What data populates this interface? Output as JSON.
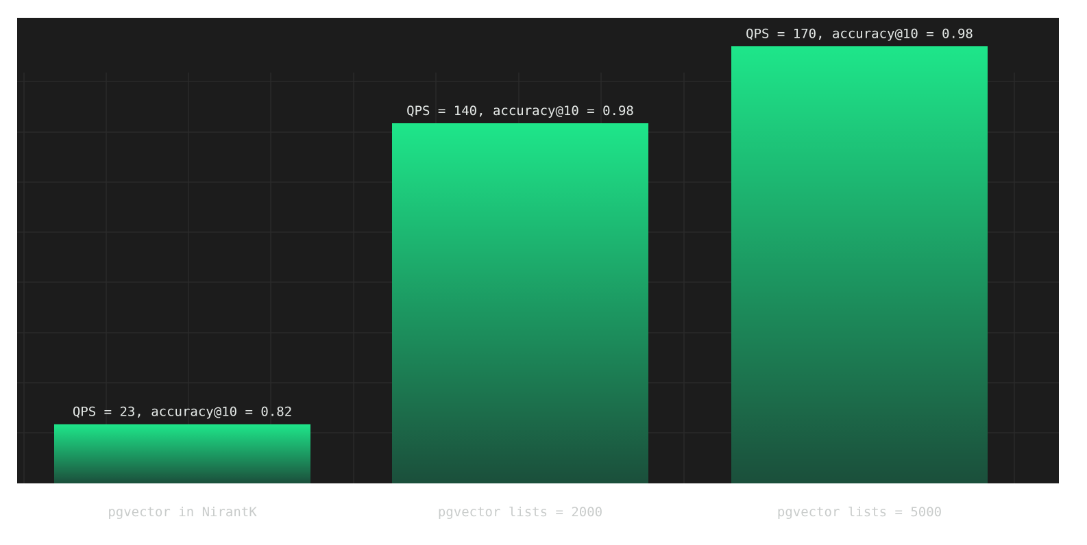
{
  "chart_data": {
    "type": "bar",
    "title": "",
    "xlabel": "",
    "ylabel": "",
    "categories": [
      "pgvector in NirantK",
      "pgvector lists = 2000",
      "pgvector lists = 5000"
    ],
    "values": [
      23,
      140,
      170
    ],
    "data_labels": [
      "QPS = 23, accuracy@10 = 0.82",
      "QPS = 140, accuracy@10 = 0.98",
      "QPS = 170, accuracy@10 = 0.98"
    ],
    "ylim": [
      0,
      181
    ],
    "grid": true,
    "legend": "none"
  },
  "colors": {
    "plot_background": "#1c1c1c",
    "grid_line": "#2a2a2a",
    "bar_top": "#1ee68a",
    "bar_bottom": "#1b4f3b",
    "data_label_text": "#e4e8e6",
    "category_label_text": "#c9cccb"
  }
}
